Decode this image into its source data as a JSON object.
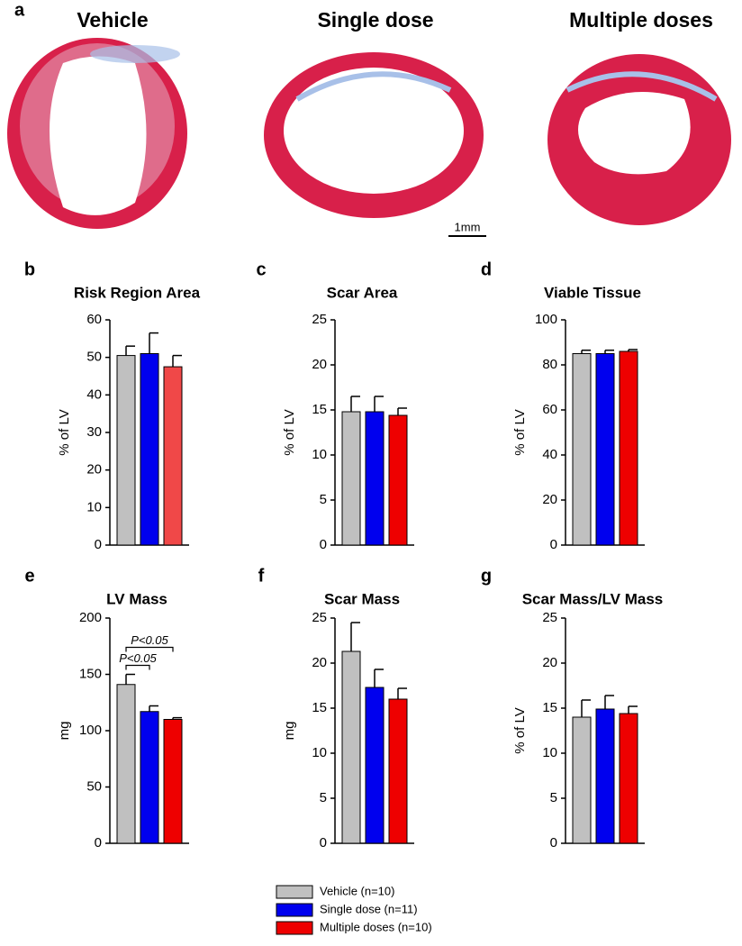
{
  "panel_a": {
    "label": "a",
    "titles": [
      "Vehicle",
      "Single dose",
      "Multiple doses"
    ],
    "scale_bar": "1mm"
  },
  "chart_data": [
    {
      "type": "bar",
      "panel": "b",
      "title": "Risk Region Area",
      "y_label": "% of LV",
      "values": [
        50.5,
        51,
        47.5
      ],
      "errors": [
        2.5,
        5.5,
        3
      ],
      "colors": [
        "#c0c0c0",
        "#0000ee",
        "#f04848"
      ],
      "ylim": [
        0,
        60
      ],
      "yticks": [
        0,
        10,
        20,
        30,
        40,
        50,
        60
      ]
    },
    {
      "type": "bar",
      "panel": "c",
      "title": "Scar Area",
      "y_label": "% of LV",
      "values": [
        14.8,
        14.8,
        14.4
      ],
      "errors": [
        1.7,
        1.7,
        0.8
      ],
      "colors": [
        "#c0c0c0",
        "#0000ee",
        "#ee0000"
      ],
      "ylim": [
        0,
        25
      ],
      "yticks": [
        0,
        5,
        10,
        15,
        20,
        25
      ]
    },
    {
      "type": "bar",
      "panel": "d",
      "title": "Viable Tissue",
      "y_label": "% of LV",
      "values": [
        85,
        85,
        86
      ],
      "errors": [
        1.5,
        1.5,
        0.8
      ],
      "colors": [
        "#c0c0c0",
        "#0000ee",
        "#ee0000"
      ],
      "ylim": [
        0,
        100
      ],
      "yticks": [
        0,
        20,
        40,
        60,
        80,
        100
      ]
    },
    {
      "type": "bar",
      "panel": "e",
      "title": "LV Mass",
      "y_label": "mg",
      "values": [
        141,
        117,
        110
      ],
      "errors": [
        9,
        5,
        1.5
      ],
      "colors": [
        "#c0c0c0",
        "#0000ee",
        "#ee0000"
      ],
      "ylim": [
        0,
        200
      ],
      "yticks": [
        0,
        50,
        100,
        150,
        200
      ],
      "annotations": [
        "P<0.05",
        "P<0.05"
      ]
    },
    {
      "type": "bar",
      "panel": "f",
      "title": "Scar Mass",
      "y_label": "mg",
      "values": [
        21.3,
        17.3,
        16
      ],
      "errors": [
        3.2,
        2,
        1.2
      ],
      "colors": [
        "#c0c0c0",
        "#0000ee",
        "#ee0000"
      ],
      "ylim": [
        0,
        25
      ],
      "yticks": [
        0,
        5,
        10,
        15,
        20,
        25
      ]
    },
    {
      "type": "bar",
      "panel": "g",
      "title": "Scar Mass/LV Mass",
      "y_label": "% of LV",
      "values": [
        14,
        14.9,
        14.4
      ],
      "errors": [
        1.9,
        1.5,
        0.8
      ],
      "colors": [
        "#c0c0c0",
        "#0000ee",
        "#ee0000"
      ],
      "ylim": [
        0,
        25
      ],
      "yticks": [
        0,
        5,
        10,
        15,
        20,
        25
      ]
    }
  ],
  "legend": {
    "entries": [
      "Vehicle (n=10)",
      "Single dose (n=11)",
      "Multiple doses (n=10)"
    ],
    "colors": [
      "#c0c0c0",
      "#0000ee",
      "#ee0000"
    ]
  }
}
